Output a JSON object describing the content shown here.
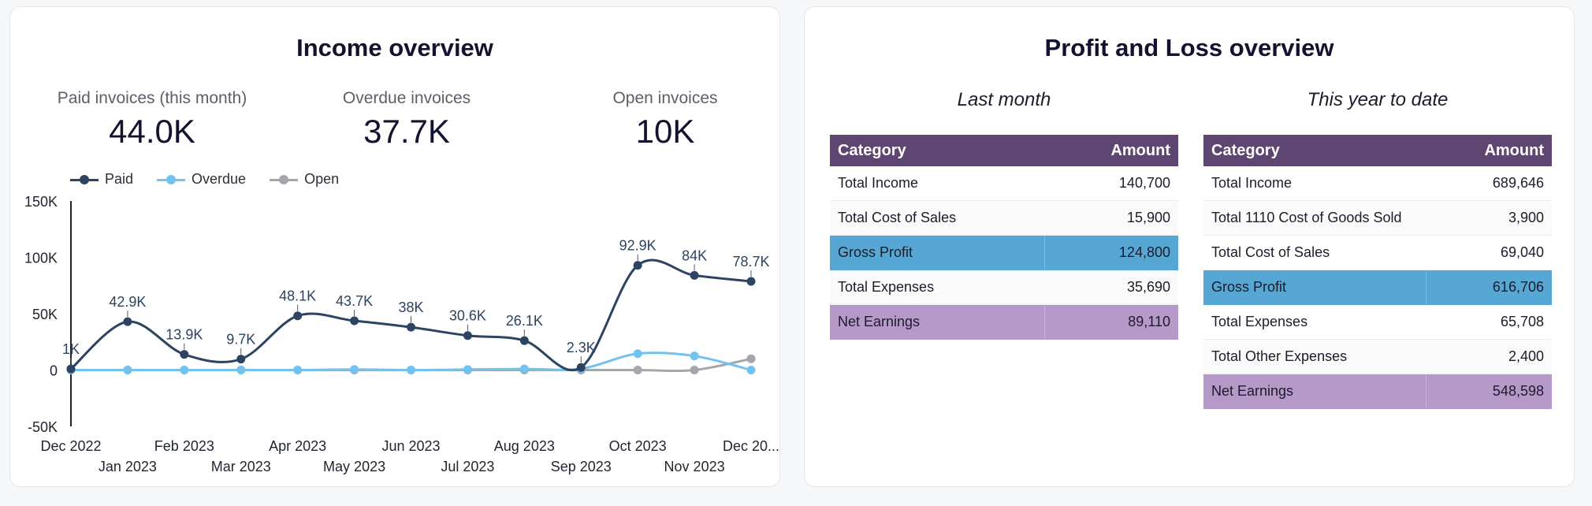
{
  "income": {
    "title": "Income overview",
    "kpis": [
      {
        "label": "Paid invoices (this month)",
        "value": "44.0K"
      },
      {
        "label": "Overdue invoices",
        "value": "37.7K"
      },
      {
        "label": "Open invoices",
        "value": "10K"
      }
    ]
  },
  "chart_data": {
    "type": "line",
    "title": "",
    "xlabel": "",
    "ylabel": "",
    "x": [
      "Dec 2022",
      "Jan 2023",
      "Feb 2023",
      "Mar 2023",
      "Apr 2023",
      "May 2023",
      "Jun 2023",
      "Jul 2023",
      "Aug 2023",
      "Sep 2023",
      "Oct 2023",
      "Nov 2023",
      "Dec 20..."
    ],
    "ylim": [
      -50000,
      150000
    ],
    "yticks": [
      -50000,
      0,
      50000,
      100000,
      150000
    ],
    "ytick_labels": [
      "-50K",
      "0",
      "50K",
      "100K",
      "150K"
    ],
    "legend": "top-left",
    "series": [
      {
        "name": "Paid",
        "color": "#2c4362",
        "values": [
          1000,
          42900,
          13900,
          9700,
          48100,
          43700,
          38000,
          30600,
          26100,
          2300,
          92900,
          84000,
          78700
        ],
        "labels": [
          "1K",
          "42.9K",
          "13.9K",
          "9.7K",
          "48.1K",
          "43.7K",
          "38K",
          "30.6K",
          "26.1K",
          "2.3K",
          "92.9K",
          "84K",
          "78.7K"
        ]
      },
      {
        "name": "Overdue",
        "color": "#72c2ef",
        "values": [
          0,
          0,
          0,
          0,
          0,
          500,
          0,
          500,
          1000,
          1200,
          14500,
          12500,
          0
        ]
      },
      {
        "name": "Open",
        "color": "#a3a6ab",
        "values": [
          0,
          0,
          0,
          0,
          0,
          0,
          0,
          0,
          0,
          0,
          0,
          0,
          10000
        ]
      }
    ]
  },
  "pl": {
    "title": "Profit and Loss overview",
    "col_category": "Category",
    "col_amount": "Amount",
    "last_month": {
      "title": "Last month",
      "rows": [
        {
          "category": "Total Income",
          "amount": "140,700",
          "style": "plain"
        },
        {
          "category": "Total Cost of Sales",
          "amount": "15,900",
          "style": "alt"
        },
        {
          "category": "Gross Profit",
          "amount": "124,800",
          "style": "gross"
        },
        {
          "category": "Total Expenses",
          "amount": "35,690",
          "style": "alt"
        },
        {
          "category": "Net Earnings",
          "amount": "89,110",
          "style": "net"
        }
      ]
    },
    "ytd": {
      "title": "This year to date",
      "rows": [
        {
          "category": "Total Income",
          "amount": "689,646",
          "style": "plain"
        },
        {
          "category": "Total 1110 Cost of Goods Sold",
          "amount": "3,900",
          "style": "alt"
        },
        {
          "category": "Total Cost of Sales",
          "amount": "69,040",
          "style": "plain"
        },
        {
          "category": "Gross Profit",
          "amount": "616,706",
          "style": "gross"
        },
        {
          "category": "Total Expenses",
          "amount": "65,708",
          "style": "plain"
        },
        {
          "category": "Total Other Expenses",
          "amount": "2,400",
          "style": "alt"
        },
        {
          "category": "Net Earnings",
          "amount": "548,598",
          "style": "net"
        }
      ]
    }
  }
}
